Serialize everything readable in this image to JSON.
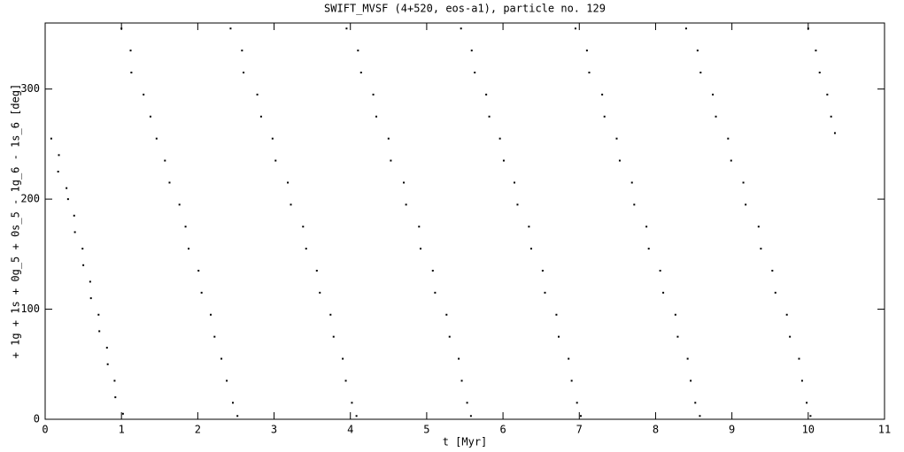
{
  "chart_data": {
    "type": "scatter",
    "title": "SWIFT_MVSF (4+520, eos-a1), particle no. 129",
    "x_label": "t [Myr]",
    "y_label": "+ 1g + 1s + 0g_5 + 0s_5 - 1g_6 - 1s_6 [deg]",
    "xlim": [
      0,
      11
    ],
    "ylim": [
      0,
      360
    ],
    "xticks": [
      0,
      1,
      2,
      3,
      4,
      5,
      6,
      7,
      8,
      9,
      10,
      11
    ],
    "yticks": [
      0,
      100,
      200,
      300
    ],
    "grid": false,
    "series": [
      {
        "color": "#000000",
        "x": [
          0.08,
          0.18,
          0.17,
          0.28,
          0.3,
          0.38,
          0.39,
          0.49,
          0.5,
          0.59,
          0.6,
          0.7,
          0.71,
          0.81,
          0.82,
          0.91,
          0.92,
          1.02,
          1.0,
          1.12,
          1.13,
          1.29,
          1.38,
          1.46,
          1.57,
          1.63,
          1.76,
          1.84,
          1.88,
          2.01,
          2.05,
          2.17,
          2.22,
          2.31,
          2.38,
          2.46,
          2.52,
          2.43,
          2.58,
          2.6,
          2.78,
          2.83,
          2.98,
          3.02,
          3.18,
          3.22,
          3.38,
          3.42,
          3.56,
          3.6,
          3.74,
          3.78,
          3.9,
          3.94,
          4.02,
          4.08,
          3.95,
          4.1,
          4.14,
          4.3,
          4.34,
          4.5,
          4.53,
          4.7,
          4.73,
          4.9,
          4.92,
          5.08,
          5.11,
          5.26,
          5.3,
          5.42,
          5.46,
          5.53,
          5.58,
          5.45,
          5.59,
          5.63,
          5.78,
          5.82,
          5.96,
          6.01,
          6.15,
          6.19,
          6.34,
          6.37,
          6.52,
          6.55,
          6.7,
          6.73,
          6.86,
          6.9,
          6.97,
          7.02,
          6.95,
          7.1,
          7.13,
          7.3,
          7.33,
          7.49,
          7.53,
          7.69,
          7.72,
          7.88,
          7.91,
          8.06,
          8.1,
          8.26,
          8.29,
          8.42,
          8.46,
          8.52,
          8.58,
          8.4,
          8.55,
          8.59,
          8.75,
          8.79,
          8.95,
          8.99,
          9.15,
          9.18,
          9.35,
          9.38,
          9.53,
          9.57,
          9.72,
          9.76,
          9.88,
          9.92,
          9.98,
          10.03,
          10.0,
          10.1,
          10.15,
          10.25,
          10.3,
          10.35
        ],
        "y": [
          255,
          240,
          225,
          210,
          200,
          185,
          170,
          155,
          140,
          125,
          110,
          95,
          80,
          65,
          50,
          35,
          20,
          5,
          355,
          335,
          315,
          295,
          275,
          255,
          235,
          215,
          195,
          175,
          155,
          135,
          115,
          95,
          75,
          55,
          35,
          15,
          3,
          355,
          335,
          315,
          295,
          275,
          255,
          235,
          215,
          195,
          175,
          155,
          135,
          115,
          95,
          75,
          55,
          35,
          15,
          3,
          355,
          335,
          315,
          295,
          275,
          255,
          235,
          215,
          195,
          175,
          155,
          135,
          115,
          95,
          75,
          55,
          35,
          15,
          3,
          355,
          335,
          315,
          295,
          275,
          255,
          235,
          215,
          195,
          175,
          155,
          135,
          115,
          95,
          75,
          55,
          35,
          15,
          3,
          355,
          335,
          315,
          295,
          275,
          255,
          235,
          215,
          195,
          175,
          155,
          135,
          115,
          95,
          75,
          55,
          35,
          15,
          3,
          355,
          335,
          315,
          295,
          275,
          255,
          235,
          215,
          195,
          175,
          155,
          135,
          115,
          95,
          75,
          55,
          35,
          15,
          3,
          355,
          335,
          315,
          295,
          275,
          260
        ]
      }
    ]
  }
}
